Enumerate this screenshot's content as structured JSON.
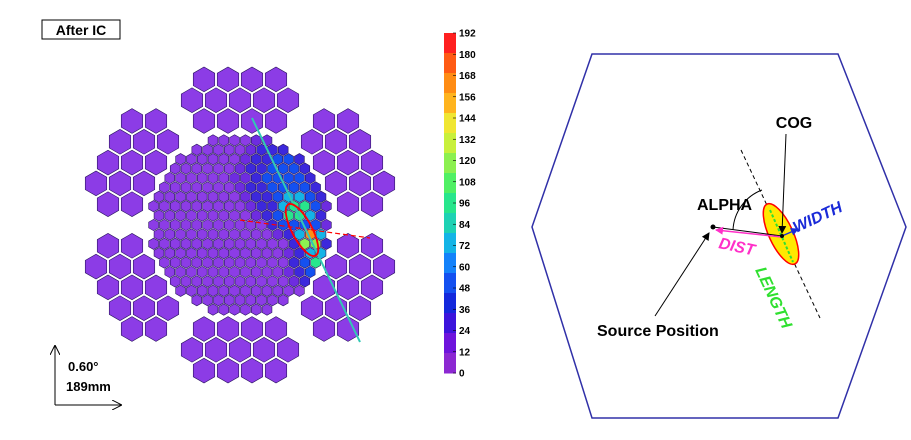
{
  "camera_panel": {
    "title": "After IC",
    "colorbar": {
      "ticks": [
        "192",
        "180",
        "168",
        "156",
        "144",
        "132",
        "120",
        "108",
        "96",
        "84",
        "72",
        "60",
        "48",
        "36",
        "24",
        "12",
        "0"
      ],
      "colors": [
        "#ff2020",
        "#ff5a14",
        "#ff8c14",
        "#ffb41e",
        "#f0e632",
        "#c8f03c",
        "#8cf050",
        "#50f064",
        "#28e68c",
        "#1ed2b4",
        "#14b4e6",
        "#1482fa",
        "#1450f0",
        "#1428dc",
        "#3c14dc",
        "#6e14dc",
        "#8c28d2"
      ]
    },
    "scale": {
      "angle": "0.60°",
      "length": "189mm"
    },
    "colors": {
      "pixel_fill": "#8c3ce6",
      "pixel_stroke": "#2a1460",
      "ellipse": "#ff0000",
      "major_axis": "#32c8b4"
    }
  },
  "hillas_panel": {
    "labels": {
      "cog": "COG",
      "alpha": "ALPHA",
      "width": "WIDTH",
      "dist": "DIST",
      "length": "LENGTH",
      "source": "Source Position"
    },
    "colors": {
      "hexagon": "#3030a8",
      "ellipse_fill": "#ffe800",
      "ellipse_stroke": "#ff0000",
      "width": "#1a2ad8",
      "dist": "#ff30c8",
      "length": "#30e030"
    }
  }
}
